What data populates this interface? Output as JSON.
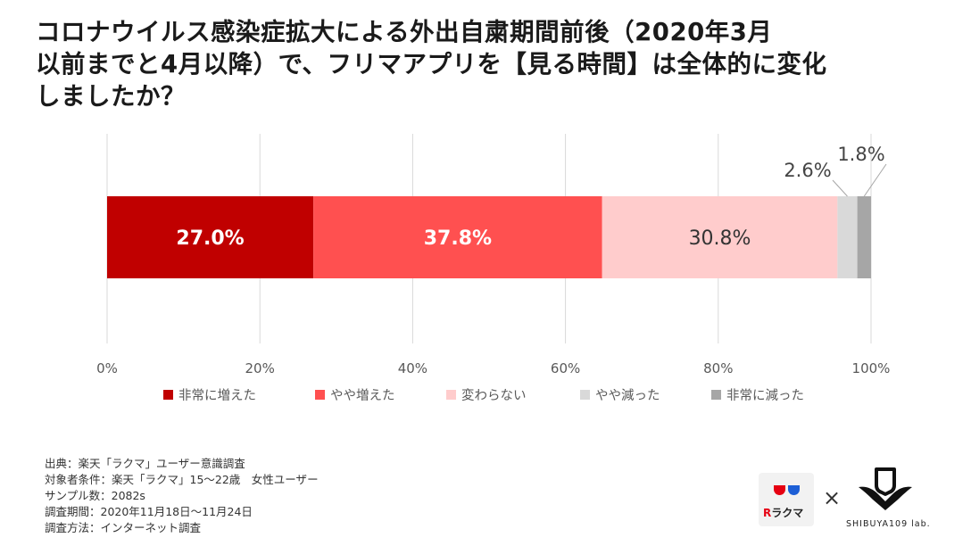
{
  "title_lines": [
    "コロナウイルス感染症拡大による外出自粛期間前後（2020年3月",
    "以前までと4月以降）で、フリマアプリを【見る時間】は全体的に変化",
    "しましたか？"
  ],
  "chart_data": {
    "type": "bar",
    "orientation": "horizontal",
    "stacked": true,
    "percent_stacked": true,
    "title": "",
    "xlabel": "",
    "ylabel": "",
    "xlim": [
      0,
      100
    ],
    "x_ticks": [
      "0%",
      "20%",
      "40%",
      "60%",
      "80%",
      "100%"
    ],
    "x_tick_values": [
      0,
      20,
      40,
      60,
      80,
      100
    ],
    "grid": "vertical",
    "legend_position": "bottom",
    "categories": [
      ""
    ],
    "series": [
      {
        "name": "非常に増えた",
        "values": [
          27.0
        ],
        "label": "27.0%",
        "color": "#c00000",
        "label_color": "#ffffff",
        "label_bold": true,
        "label_outside": false
      },
      {
        "name": "やや増えた",
        "values": [
          37.8
        ],
        "label": "37.8%",
        "color": "#ff5050",
        "label_color": "#ffffff",
        "label_bold": true,
        "label_outside": false
      },
      {
        "name": "変わらない",
        "values": [
          30.8
        ],
        "label": "30.8%",
        "color": "#ffcccc",
        "label_color": "#333333",
        "label_bold": false,
        "label_outside": false
      },
      {
        "name": "やや減った",
        "values": [
          2.6
        ],
        "label": "2.6%",
        "color": "#d9d9d9",
        "label_color": "#444444",
        "label_bold": false,
        "label_outside": true
      },
      {
        "name": "非常に減った",
        "values": [
          1.8
        ],
        "label": "1.8%",
        "color": "#a6a6a6",
        "label_color": "#444444",
        "label_bold": false,
        "label_outside": true
      }
    ]
  },
  "source_lines": [
    "出典：楽天「ラクマ」ユーザー意識調査",
    "対象者条件：楽天「ラクマ」15～22歳　女性ユーザー",
    "サンプル数：2082s",
    "調査期間：2020年11月18日～11月24日",
    "調査方法：インターネット調査"
  ],
  "logos": {
    "rakuma_r": "R",
    "rakuma_text": "ラクマ",
    "separator": "×",
    "shibuya_text": "SHIBUYA109 lab.",
    "rakuma_icon": "rakuma-cups-icon",
    "shibuya_icon": "shibuya109-lab-icon"
  }
}
